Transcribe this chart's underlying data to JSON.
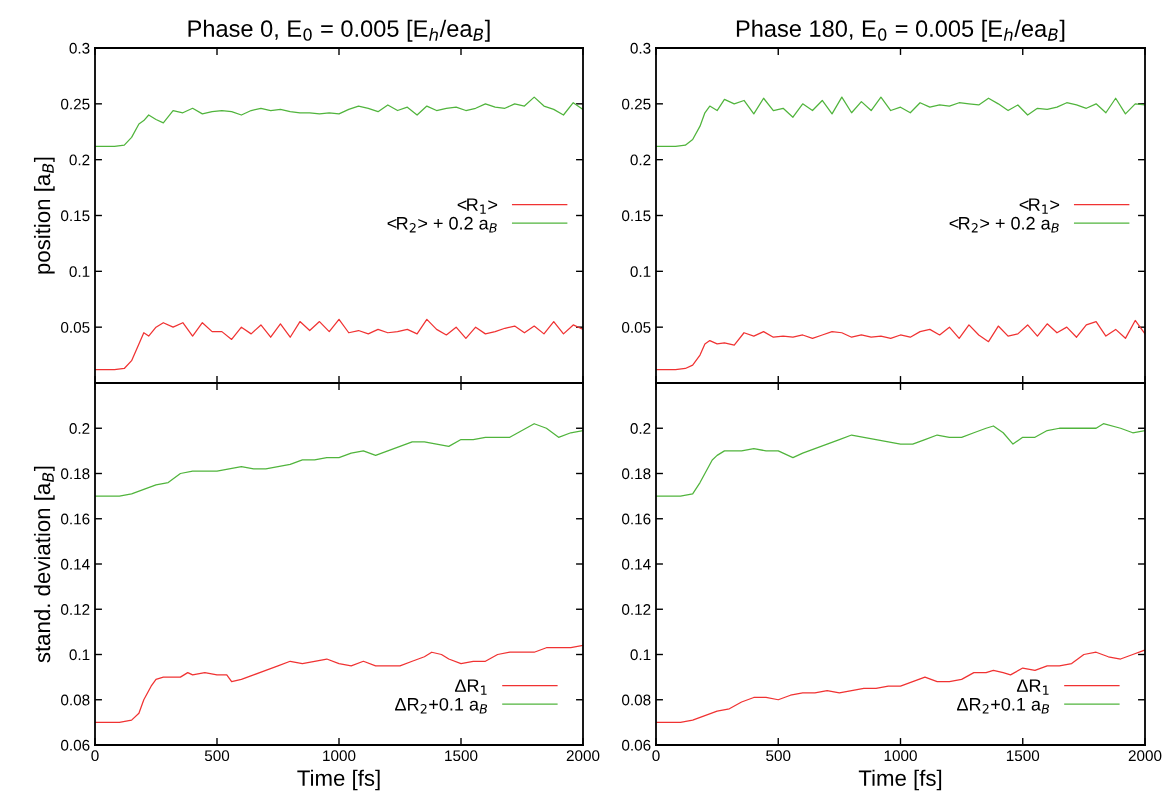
{
  "chart_data": [
    {
      "type": "line",
      "title": "Phase 0, E$_{0}$ = 0.005 [E$_{h}$/ea$_{B}$]",
      "ylabel": "position [a$_{B}$]",
      "xlim": [
        0,
        2000
      ],
      "xticks": [
        0,
        500,
        1000,
        1500,
        2000
      ],
      "ylim": [
        0,
        0.3
      ],
      "yticks": [
        0.05,
        0.1,
        0.15,
        0.2,
        0.25,
        0.3
      ],
      "tick_labels": "y",
      "legend": "right",
      "series": [
        {
          "name": "<R$_{1}$>",
          "color": "#f03232",
          "x": [
            0,
            40,
            80,
            120,
            150,
            180,
            200,
            220,
            250,
            280,
            320,
            360,
            400,
            440,
            480,
            520,
            560,
            600,
            640,
            680,
            720,
            760,
            800,
            840,
            880,
            920,
            960,
            1000,
            1040,
            1080,
            1120,
            1160,
            1200,
            1240,
            1280,
            1320,
            1360,
            1400,
            1440,
            1480,
            1520,
            1560,
            1600,
            1640,
            1680,
            1720,
            1760,
            1800,
            1840,
            1880,
            1920,
            1960,
            2000
          ],
          "values": [
            0.012,
            0.012,
            0.012,
            0.013,
            0.02,
            0.035,
            0.045,
            0.042,
            0.05,
            0.054,
            0.05,
            0.054,
            0.042,
            0.054,
            0.046,
            0.046,
            0.039,
            0.05,
            0.044,
            0.052,
            0.041,
            0.053,
            0.041,
            0.055,
            0.047,
            0.055,
            0.046,
            0.057,
            0.045,
            0.047,
            0.044,
            0.048,
            0.045,
            0.046,
            0.048,
            0.044,
            0.057,
            0.048,
            0.043,
            0.05,
            0.04,
            0.05,
            0.044,
            0.046,
            0.049,
            0.051,
            0.045,
            0.051,
            0.044,
            0.055,
            0.044,
            0.052,
            0.048
          ]
        },
        {
          "name": "<R$_{2}$> + 0.2 a$_{B}$",
          "color": "#50b43c",
          "x": [
            0,
            40,
            80,
            120,
            150,
            180,
            200,
            220,
            250,
            280,
            320,
            360,
            400,
            440,
            480,
            520,
            560,
            600,
            640,
            680,
            720,
            760,
            800,
            840,
            880,
            920,
            960,
            1000,
            1040,
            1080,
            1120,
            1160,
            1200,
            1240,
            1280,
            1320,
            1360,
            1400,
            1440,
            1480,
            1520,
            1560,
            1600,
            1640,
            1680,
            1720,
            1760,
            1800,
            1840,
            1880,
            1920,
            1960,
            2000
          ],
          "values": [
            0.212,
            0.212,
            0.212,
            0.213,
            0.22,
            0.232,
            0.235,
            0.24,
            0.236,
            0.233,
            0.244,
            0.242,
            0.246,
            0.241,
            0.243,
            0.244,
            0.243,
            0.24,
            0.244,
            0.246,
            0.244,
            0.245,
            0.243,
            0.242,
            0.242,
            0.241,
            0.242,
            0.241,
            0.245,
            0.248,
            0.246,
            0.243,
            0.249,
            0.244,
            0.247,
            0.24,
            0.248,
            0.244,
            0.246,
            0.247,
            0.244,
            0.246,
            0.25,
            0.247,
            0.246,
            0.25,
            0.248,
            0.256,
            0.248,
            0.245,
            0.24,
            0.251,
            0.245
          ]
        }
      ]
    },
    {
      "type": "line",
      "title": "Phase 180, E$_{0}$ = 0.005 [E$_{h}$/ea$_{B}$]",
      "xlim": [
        0,
        2000
      ],
      "xticks": [
        0,
        500,
        1000,
        1500,
        2000
      ],
      "ylim": [
        0,
        0.3
      ],
      "yticks": [
        0.05,
        0.1,
        0.15,
        0.2,
        0.25,
        0.3
      ],
      "tick_labels": "y",
      "legend": "right",
      "series": [
        {
          "name": "<R$_{1}$>",
          "color": "#f03232",
          "x": [
            0,
            40,
            80,
            120,
            150,
            180,
            200,
            220,
            250,
            280,
            320,
            360,
            400,
            440,
            480,
            520,
            560,
            600,
            640,
            680,
            720,
            760,
            800,
            840,
            880,
            920,
            960,
            1000,
            1040,
            1080,
            1120,
            1160,
            1200,
            1240,
            1280,
            1320,
            1360,
            1400,
            1440,
            1480,
            1520,
            1560,
            1600,
            1640,
            1680,
            1720,
            1760,
            1800,
            1840,
            1880,
            1920,
            1960,
            2000
          ],
          "values": [
            0.012,
            0.012,
            0.012,
            0.013,
            0.016,
            0.025,
            0.035,
            0.038,
            0.035,
            0.036,
            0.034,
            0.045,
            0.042,
            0.046,
            0.041,
            0.042,
            0.041,
            0.043,
            0.04,
            0.043,
            0.046,
            0.045,
            0.041,
            0.043,
            0.041,
            0.042,
            0.04,
            0.043,
            0.041,
            0.046,
            0.048,
            0.043,
            0.05,
            0.04,
            0.052,
            0.043,
            0.037,
            0.051,
            0.042,
            0.044,
            0.052,
            0.042,
            0.053,
            0.045,
            0.05,
            0.041,
            0.052,
            0.055,
            0.042,
            0.048,
            0.04,
            0.056,
            0.044
          ]
        },
        {
          "name": "<R$_{2}$> + 0.2 a$_{B}$",
          "color": "#50b43c",
          "x": [
            0,
            40,
            80,
            120,
            150,
            180,
            200,
            220,
            250,
            280,
            320,
            360,
            400,
            440,
            480,
            520,
            560,
            600,
            640,
            680,
            720,
            760,
            800,
            840,
            880,
            920,
            960,
            1000,
            1040,
            1080,
            1120,
            1160,
            1200,
            1240,
            1280,
            1320,
            1360,
            1400,
            1440,
            1480,
            1520,
            1560,
            1600,
            1640,
            1680,
            1720,
            1760,
            1800,
            1840,
            1880,
            1920,
            1960,
            2000
          ],
          "values": [
            0.212,
            0.212,
            0.212,
            0.213,
            0.218,
            0.23,
            0.242,
            0.248,
            0.244,
            0.254,
            0.25,
            0.253,
            0.241,
            0.255,
            0.244,
            0.246,
            0.238,
            0.25,
            0.244,
            0.253,
            0.241,
            0.256,
            0.242,
            0.252,
            0.244,
            0.256,
            0.244,
            0.247,
            0.242,
            0.251,
            0.247,
            0.249,
            0.248,
            0.251,
            0.25,
            0.249,
            0.255,
            0.25,
            0.244,
            0.249,
            0.24,
            0.246,
            0.245,
            0.247,
            0.251,
            0.249,
            0.246,
            0.25,
            0.242,
            0.255,
            0.241,
            0.25,
            0.249
          ]
        }
      ]
    },
    {
      "type": "line",
      "ylabel": "stand. deviation [a$_{B}$]",
      "xlabel": "Time [fs]",
      "xlim": [
        0,
        2000
      ],
      "xticks": [
        0,
        500,
        1000,
        1500,
        2000
      ],
      "ylim": [
        0.06,
        0.22
      ],
      "yticks": [
        0.06,
        0.08,
        0.1,
        0.12,
        0.14,
        0.16,
        0.18,
        0.2
      ],
      "legend": "bottom right",
      "series": [
        {
          "name": "ΔR$_{1}$",
          "color": "#f03232",
          "x": [
            0,
            50,
            100,
            150,
            180,
            200,
            230,
            250,
            280,
            300,
            350,
            380,
            400,
            450,
            500,
            540,
            560,
            600,
            650,
            700,
            750,
            800,
            850,
            900,
            950,
            1000,
            1050,
            1100,
            1150,
            1200,
            1250,
            1300,
            1350,
            1380,
            1420,
            1450,
            1500,
            1550,
            1600,
            1650,
            1700,
            1750,
            1800,
            1850,
            1900,
            1950,
            2000
          ],
          "values": [
            0.07,
            0.07,
            0.07,
            0.071,
            0.074,
            0.08,
            0.086,
            0.089,
            0.09,
            0.09,
            0.09,
            0.092,
            0.091,
            0.092,
            0.091,
            0.091,
            0.088,
            0.089,
            0.091,
            0.093,
            0.095,
            0.097,
            0.096,
            0.097,
            0.098,
            0.096,
            0.095,
            0.097,
            0.095,
            0.095,
            0.095,
            0.097,
            0.099,
            0.101,
            0.1,
            0.098,
            0.096,
            0.097,
            0.097,
            0.1,
            0.101,
            0.101,
            0.101,
            0.103,
            0.103,
            0.103,
            0.104
          ]
        },
        {
          "name": "ΔR$_{2}$+0.1 a$_{B}$",
          "color": "#50b43c",
          "x": [
            0,
            50,
            100,
            150,
            200,
            250,
            300,
            350,
            400,
            450,
            500,
            550,
            600,
            650,
            700,
            750,
            800,
            850,
            900,
            950,
            1000,
            1050,
            1100,
            1150,
            1200,
            1250,
            1300,
            1350,
            1400,
            1450,
            1500,
            1550,
            1600,
            1650,
            1700,
            1750,
            1800,
            1850,
            1900,
            1950,
            2000
          ],
          "values": [
            0.17,
            0.17,
            0.17,
            0.171,
            0.173,
            0.175,
            0.176,
            0.18,
            0.181,
            0.181,
            0.181,
            0.182,
            0.183,
            0.182,
            0.182,
            0.183,
            0.184,
            0.186,
            0.186,
            0.187,
            0.187,
            0.189,
            0.19,
            0.188,
            0.19,
            0.192,
            0.194,
            0.194,
            0.193,
            0.192,
            0.195,
            0.195,
            0.196,
            0.196,
            0.196,
            0.199,
            0.202,
            0.2,
            0.196,
            0.198,
            0.199
          ]
        }
      ]
    },
    {
      "type": "line",
      "xlabel": "Time [fs]",
      "xlim": [
        0,
        2000
      ],
      "xticks": [
        0,
        500,
        1000,
        1500,
        2000
      ],
      "ylim": [
        0.06,
        0.22
      ],
      "yticks": [
        0.06,
        0.08,
        0.1,
        0.12,
        0.14,
        0.16,
        0.18,
        0.2
      ],
      "legend": "bottom right",
      "series": [
        {
          "name": "ΔR$_{1}$",
          "color": "#f03232",
          "x": [
            0,
            50,
            100,
            150,
            200,
            250,
            300,
            350,
            400,
            450,
            500,
            550,
            600,
            650,
            700,
            750,
            800,
            850,
            900,
            950,
            1000,
            1050,
            1100,
            1150,
            1200,
            1250,
            1300,
            1350,
            1380,
            1420,
            1450,
            1500,
            1550,
            1600,
            1650,
            1700,
            1750,
            1800,
            1850,
            1900,
            1950,
            2000
          ],
          "values": [
            0.07,
            0.07,
            0.07,
            0.071,
            0.073,
            0.075,
            0.076,
            0.079,
            0.081,
            0.081,
            0.08,
            0.082,
            0.083,
            0.083,
            0.084,
            0.083,
            0.084,
            0.085,
            0.085,
            0.086,
            0.086,
            0.088,
            0.09,
            0.088,
            0.088,
            0.089,
            0.092,
            0.092,
            0.093,
            0.092,
            0.091,
            0.094,
            0.093,
            0.095,
            0.095,
            0.096,
            0.1,
            0.101,
            0.099,
            0.098,
            0.1,
            0.102
          ]
        },
        {
          "name": "ΔR$_{2}$+0.1 a$_{B}$",
          "color": "#50b43c",
          "x": [
            0,
            50,
            100,
            150,
            180,
            200,
            230,
            250,
            280,
            300,
            350,
            400,
            450,
            500,
            560,
            600,
            650,
            700,
            750,
            800,
            850,
            900,
            950,
            1000,
            1050,
            1100,
            1150,
            1200,
            1250,
            1300,
            1350,
            1380,
            1420,
            1460,
            1500,
            1550,
            1600,
            1650,
            1700,
            1750,
            1800,
            1830,
            1900,
            1950,
            2000
          ],
          "values": [
            0.17,
            0.17,
            0.17,
            0.171,
            0.176,
            0.18,
            0.186,
            0.188,
            0.19,
            0.19,
            0.19,
            0.191,
            0.19,
            0.19,
            0.187,
            0.189,
            0.191,
            0.193,
            0.195,
            0.197,
            0.196,
            0.195,
            0.194,
            0.193,
            0.193,
            0.195,
            0.197,
            0.196,
            0.196,
            0.198,
            0.2,
            0.201,
            0.198,
            0.193,
            0.196,
            0.196,
            0.199,
            0.2,
            0.2,
            0.2,
            0.2,
            0.202,
            0.2,
            0.198,
            0.199
          ]
        }
      ]
    }
  ]
}
